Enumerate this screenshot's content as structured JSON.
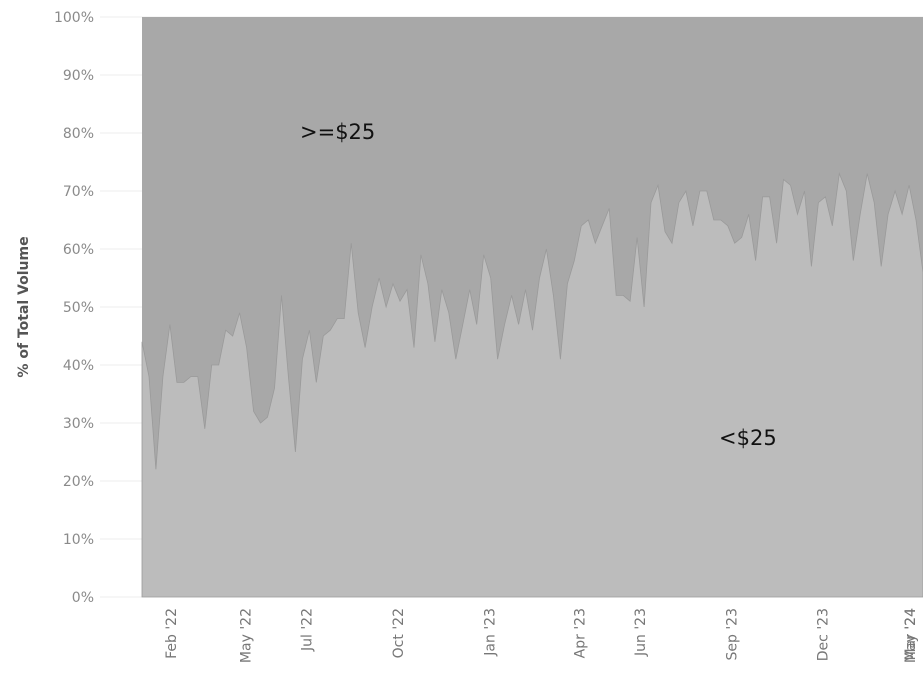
{
  "chart_data": {
    "type": "area",
    "stacked": true,
    "normalized_percent": true,
    "ylabel": "% of Total Volume",
    "xlabel": "",
    "ylim": [
      0,
      100
    ],
    "yticks": [
      "0%",
      "10%",
      "20%",
      "30%",
      "40%",
      "50%",
      "60%",
      "70%",
      "80%",
      "90%",
      "100%"
    ],
    "xticks": [
      "Feb '22",
      "May '22",
      "Jul '22",
      "Oct '22",
      "Jan '23",
      "Apr '23",
      "Jun '23",
      "Sep '23",
      "Dec '23",
      "Mar '24",
      "May '24"
    ],
    "grid": "horizontal",
    "annotations": [
      ">=$25",
      "<$25"
    ],
    "series": [
      {
        "name": "<$25",
        "color": "#bcbcbc",
        "points": [
          [
            "2022-01-16",
            44
          ],
          [
            "2022-01-23",
            38
          ],
          [
            "2022-01-30",
            22
          ],
          [
            "2022-02-06",
            38
          ],
          [
            "2022-02-13",
            47
          ],
          [
            "2022-02-20",
            37
          ],
          [
            "2022-02-27",
            37
          ],
          [
            "2022-03-06",
            38
          ],
          [
            "2022-03-13",
            38
          ],
          [
            "2022-03-20",
            29
          ],
          [
            "2022-03-27",
            40
          ],
          [
            "2022-04-03",
            40
          ],
          [
            "2022-04-10",
            46
          ],
          [
            "2022-04-17",
            45
          ],
          [
            "2022-04-24",
            49
          ],
          [
            "2022-05-01",
            43
          ],
          [
            "2022-05-08",
            32
          ],
          [
            "2022-05-15",
            30
          ],
          [
            "2022-05-22",
            31
          ],
          [
            "2022-05-29",
            36
          ],
          [
            "2022-06-05",
            52
          ],
          [
            "2022-06-12",
            38
          ],
          [
            "2022-06-19",
            25
          ],
          [
            "2022-06-26",
            41
          ],
          [
            "2022-07-03",
            46
          ],
          [
            "2022-07-10",
            37
          ],
          [
            "2022-07-17",
            45
          ],
          [
            "2022-07-24",
            46
          ],
          [
            "2022-07-31",
            48
          ],
          [
            "2022-08-07",
            48
          ],
          [
            "2022-08-14",
            61
          ],
          [
            "2022-08-21",
            49
          ],
          [
            "2022-08-28",
            43
          ],
          [
            "2022-09-04",
            50
          ],
          [
            "2022-09-11",
            55
          ],
          [
            "2022-09-18",
            50
          ],
          [
            "2022-09-25",
            54
          ],
          [
            "2022-10-02",
            51
          ],
          [
            "2022-10-09",
            53
          ],
          [
            "2022-10-16",
            43
          ],
          [
            "2022-10-23",
            59
          ],
          [
            "2022-10-30",
            54
          ],
          [
            "2022-11-06",
            44
          ],
          [
            "2022-11-13",
            53
          ],
          [
            "2022-11-20",
            49
          ],
          [
            "2022-11-27",
            41
          ],
          [
            "2022-12-04",
            47
          ],
          [
            "2022-12-11",
            53
          ],
          [
            "2022-12-18",
            47
          ],
          [
            "2022-12-25",
            59
          ],
          [
            "2023-01-01",
            55
          ],
          [
            "2023-01-08",
            41
          ],
          [
            "2023-01-15",
            47
          ],
          [
            "2023-01-22",
            52
          ],
          [
            "2023-01-29",
            47
          ],
          [
            "2023-02-05",
            53
          ],
          [
            "2023-02-12",
            46
          ],
          [
            "2023-02-19",
            55
          ],
          [
            "2023-02-26",
            60
          ],
          [
            "2023-03-05",
            52
          ],
          [
            "2023-03-12",
            41
          ],
          [
            "2023-03-19",
            54
          ],
          [
            "2023-03-26",
            58
          ],
          [
            "2023-04-02",
            64
          ],
          [
            "2023-04-09",
            65
          ],
          [
            "2023-04-16",
            61
          ],
          [
            "2023-04-23",
            64
          ],
          [
            "2023-04-30",
            67
          ],
          [
            "2023-05-07",
            52
          ],
          [
            "2023-05-14",
            52
          ],
          [
            "2023-05-21",
            51
          ],
          [
            "2023-05-28",
            62
          ],
          [
            "2023-06-04",
            50
          ],
          [
            "2023-06-11",
            68
          ],
          [
            "2023-06-18",
            71
          ],
          [
            "2023-06-25",
            63
          ],
          [
            "2023-07-02",
            61
          ],
          [
            "2023-07-09",
            68
          ],
          [
            "2023-07-16",
            70
          ],
          [
            "2023-07-23",
            64
          ],
          [
            "2023-07-30",
            70
          ],
          [
            "2023-08-06",
            70
          ],
          [
            "2023-08-13",
            65
          ],
          [
            "2023-08-20",
            65
          ],
          [
            "2023-08-27",
            64
          ],
          [
            "2023-09-03",
            61
          ],
          [
            "2023-09-10",
            62
          ],
          [
            "2023-09-17",
            66
          ],
          [
            "2023-09-24",
            58
          ],
          [
            "2023-10-01",
            69
          ],
          [
            "2023-10-08",
            69
          ],
          [
            "2023-10-15",
            61
          ],
          [
            "2023-10-22",
            72
          ],
          [
            "2023-10-29",
            71
          ],
          [
            "2023-11-05",
            66
          ],
          [
            "2023-11-12",
            70
          ],
          [
            "2023-11-19",
            57
          ],
          [
            "2023-11-26",
            68
          ],
          [
            "2023-12-03",
            69
          ],
          [
            "2023-12-10",
            64
          ],
          [
            "2023-12-17",
            73
          ],
          [
            "2023-12-24",
            70
          ],
          [
            "2023-12-31",
            58
          ],
          [
            "2024-01-07",
            66
          ],
          [
            "2024-01-14",
            73
          ],
          [
            "2024-01-21",
            68
          ],
          [
            "2024-01-28",
            57
          ],
          [
            "2024-02-04",
            66
          ],
          [
            "2024-02-11",
            70
          ],
          [
            "2024-02-18",
            66
          ],
          [
            "2024-02-25",
            71
          ],
          [
            "2024-03-03",
            65
          ],
          [
            "2024-03-10",
            56
          ]
        ]
      },
      {
        "name": ">=$25",
        "color": "#a8a8a8",
        "note": "complement to 100%"
      }
    ]
  }
}
